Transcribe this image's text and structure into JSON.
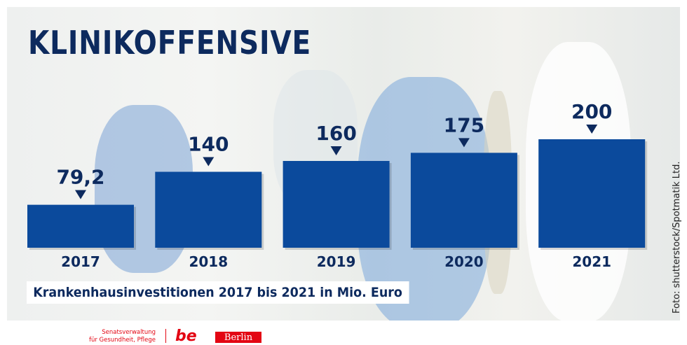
{
  "title": "KLINIKOFFENSIVE",
  "subtitle": "Krankenhausinvestitionen 2017 bis 2021 in Mio. Euro",
  "photo_credit": "Foto: shutterstock/Spotmatik Ltd.",
  "footer": {
    "department_line1": "Senatsverwaltung",
    "department_line2": "für Gesundheit, Pflege",
    "logo_text": "be",
    "berlin_label": "Berlin"
  },
  "colors": {
    "bar": "#0b4a9c",
    "text": "#0d2a5e",
    "brand_red": "#e30613"
  },
  "chart_data": {
    "type": "bar",
    "categories": [
      "2017",
      "2018",
      "2019",
      "2020",
      "2021"
    ],
    "values": [
      79.2,
      140,
      160,
      175,
      200
    ],
    "value_labels": [
      "79,2",
      "140",
      "160",
      "175",
      "200"
    ],
    "title": "KLINIKOFFENSIVE",
    "xlabel": "",
    "ylabel": "",
    "ylim": [
      0,
      200
    ],
    "grid": false
  }
}
